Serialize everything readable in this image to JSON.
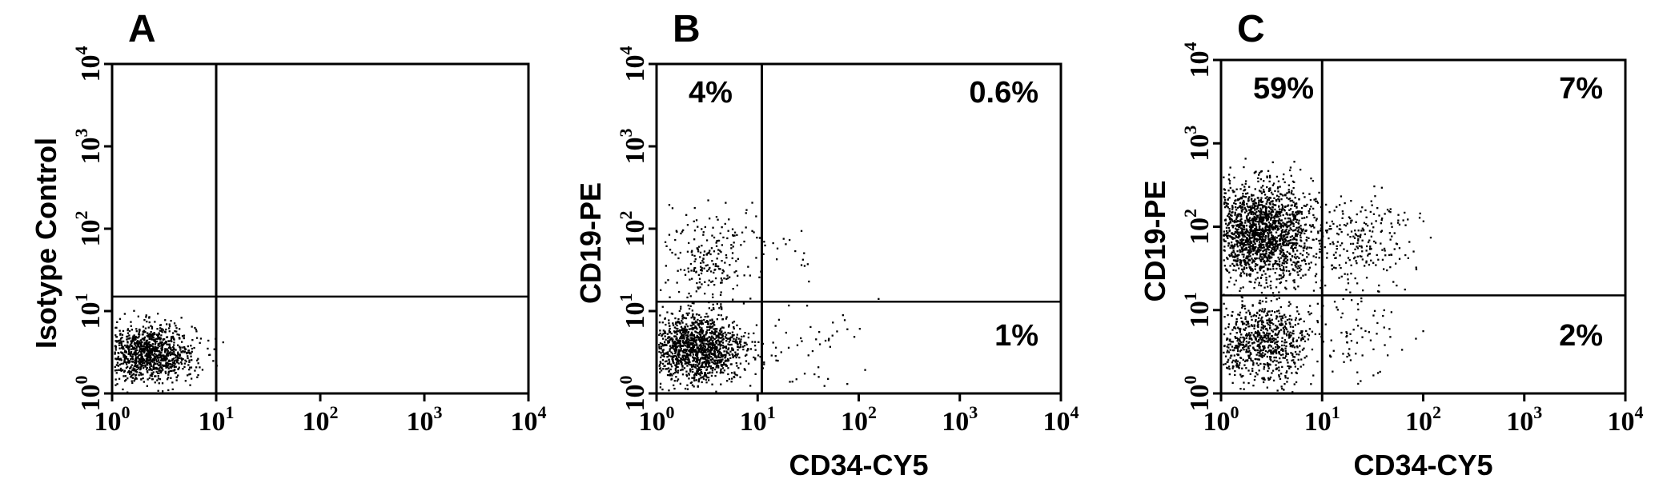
{
  "chart_data": [
    {
      "type": "scatter",
      "panel": "A",
      "xscale": "log",
      "yscale": "log",
      "xlim": [
        1,
        10000
      ],
      "ylim": [
        1,
        10000
      ],
      "x_ticks": [
        "10^0",
        "10^1",
        "10^2",
        "10^3",
        "10^4"
      ],
      "y_ticks": [
        "10^0",
        "10^1",
        "10^2",
        "10^3",
        "10^4"
      ],
      "xlabel": "",
      "ylabel": "Isotype Control",
      "quadrant_gates": {
        "x": 10,
        "y": 15
      },
      "quadrant_labels": {
        "upper_left": "",
        "upper_right": "",
        "lower_right": ""
      },
      "populations": [
        {
          "count": 1100,
          "x_log_center": 0.35,
          "y_log_center": 0.5,
          "x_log_sd": 0.22,
          "y_log_sd": 0.17
        }
      ]
    },
    {
      "type": "scatter",
      "panel": "B",
      "xscale": "log",
      "yscale": "log",
      "xlim": [
        1,
        10000
      ],
      "ylim": [
        1,
        10000
      ],
      "x_ticks": [
        "10^0",
        "10^1",
        "10^2",
        "10^3",
        "10^4"
      ],
      "y_ticks": [
        "10^0",
        "10^1",
        "10^2",
        "10^3",
        "10^4"
      ],
      "xlabel": "CD34-CY5",
      "ylabel": "CD19-PE",
      "quadrant_gates": {
        "x": 11,
        "y": 13
      },
      "quadrant_labels": {
        "upper_left": "4%",
        "upper_right": "0.6%",
        "lower_right": "1%"
      },
      "populations": [
        {
          "count": 1400,
          "x_log_center": 0.38,
          "y_log_center": 0.55,
          "x_log_sd": 0.25,
          "y_log_sd": 0.2
        },
        {
          "count": 230,
          "x_log_center": 0.5,
          "y_log_center": 1.65,
          "x_log_sd": 0.2,
          "y_log_sd": 0.33
        },
        {
          "count": 18,
          "x_log_center": 1.25,
          "y_log_center": 1.7,
          "x_log_sd": 0.18,
          "y_log_sd": 0.2
        },
        {
          "count": 50,
          "x_log_center": 1.45,
          "y_log_center": 0.6,
          "x_log_sd": 0.32,
          "y_log_sd": 0.28
        }
      ]
    },
    {
      "type": "scatter",
      "panel": "C",
      "xscale": "log",
      "yscale": "log",
      "xlim": [
        1,
        10000
      ],
      "ylim": [
        1,
        10000
      ],
      "x_ticks": [
        "10^0",
        "10^1",
        "10^2",
        "10^3",
        "10^4"
      ],
      "y_ticks": [
        "10^0",
        "10^1",
        "10^2",
        "10^3",
        "10^4"
      ],
      "xlabel": "CD34-CY5",
      "ylabel": "CD19-PE",
      "quadrant_gates": {
        "x": 10,
        "y": 15
      },
      "quadrant_labels": {
        "upper_left": "59%",
        "upper_right": "7%",
        "lower_right": "2%"
      },
      "populations": [
        {
          "count": 1800,
          "x_log_center": 0.4,
          "y_log_center": 1.95,
          "x_log_sd": 0.25,
          "y_log_sd": 0.28
        },
        {
          "count": 800,
          "x_log_center": 0.4,
          "y_log_center": 0.62,
          "x_log_sd": 0.24,
          "y_log_sd": 0.24
        },
        {
          "count": 230,
          "x_log_center": 1.35,
          "y_log_center": 1.8,
          "x_log_sd": 0.25,
          "y_log_sd": 0.3
        },
        {
          "count": 70,
          "x_log_center": 1.35,
          "y_log_center": 0.75,
          "x_log_sd": 0.25,
          "y_log_sd": 0.3
        }
      ]
    }
  ]
}
